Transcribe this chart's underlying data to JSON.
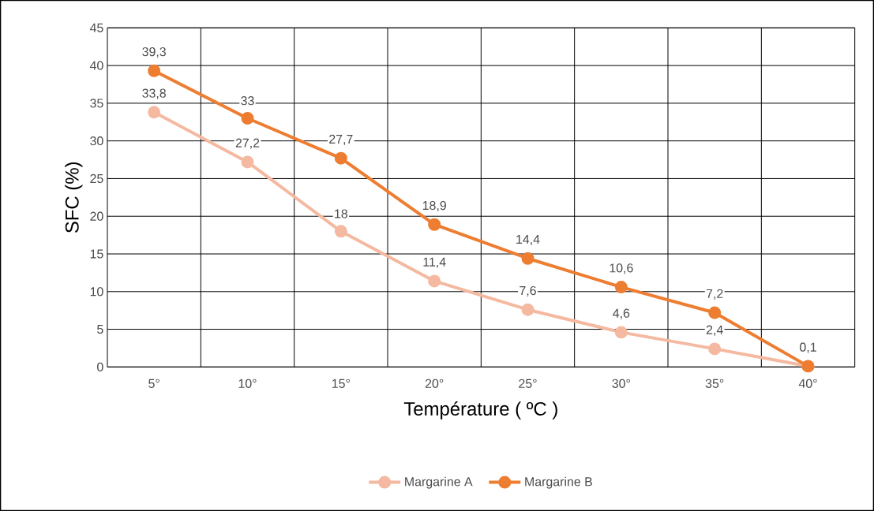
{
  "chart_data": {
    "type": "line",
    "xlabel": "Température ( ºC )",
    "ylabel": "SFC (%)",
    "categories": [
      "5°",
      "10°",
      "15°",
      "20°",
      "25°",
      "30°",
      "35°",
      "40°"
    ],
    "ylim": [
      0,
      45
    ],
    "yticks": [
      0,
      5,
      10,
      15,
      20,
      25,
      30,
      35,
      40,
      45
    ],
    "grid": true,
    "legend": "bottom",
    "marker": "circle",
    "line_style": "solid",
    "series": [
      {
        "name": "Margarine A",
        "color": "#f4b9a0",
        "values": [
          33.8,
          27.2,
          18,
          11.4,
          7.6,
          4.6,
          2.4,
          0.1
        ],
        "value_labels": [
          "33,8",
          "27,2",
          "18",
          "11,4",
          "7,6",
          "4,6",
          "2,4",
          null
        ]
      },
      {
        "name": "Margarine B",
        "color": "#ed7d31",
        "values": [
          39.3,
          33,
          27.7,
          18.9,
          14.4,
          10.6,
          7.2,
          0.1
        ],
        "value_labels": [
          "39,3",
          "33",
          "27,7",
          "18,9",
          "14,4",
          "10,6",
          "7,2",
          "0,1"
        ]
      }
    ]
  }
}
